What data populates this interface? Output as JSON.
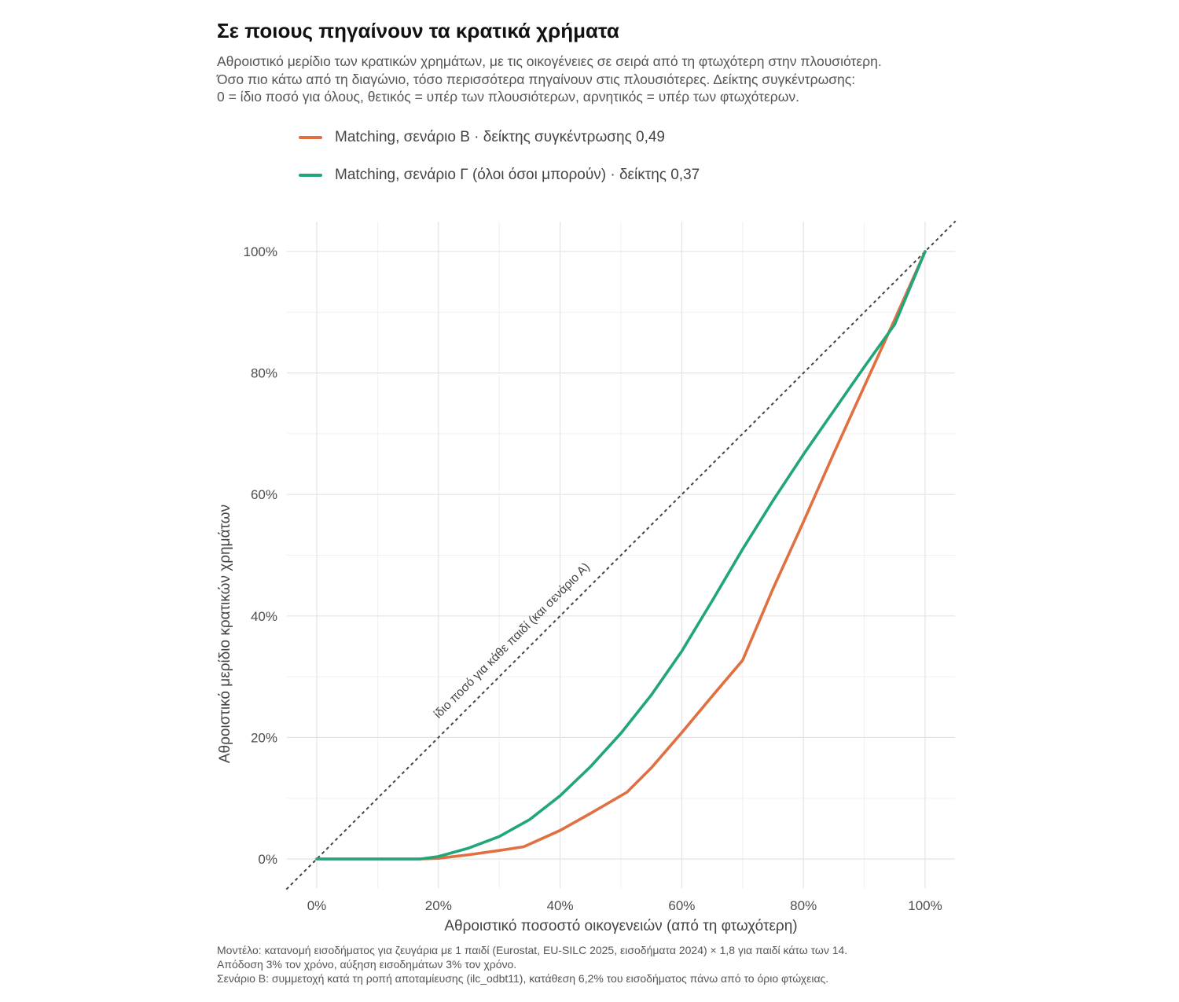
{
  "title": "Σε ποιους πηγαίνουν τα κρατικά χρήματα",
  "subtitle": [
    "Αθροιστικό μερίδιο των κρατικών χρημάτων, με τις οικογένειες σε σειρά από τη φτωχότερη στην πλουσιότερη.",
    "Όσο πιο κάτω από τη διαγώνιο, τόσο περισσότερα πηγαίνουν στις πλουσιότερες. Δείκτης συγκέντρωσης:",
    "0 = ίδιο ποσό για όλους, θετικός = υπέρ των πλουσιότερων, αρνητικός = υπέρ των φτωχότερων."
  ],
  "caption": [
    "Μοντέλο: κατανομή εισοδήματος για ζευγάρια με 1 παιδί (Eurostat, EU-SILC 2025, εισοδήματα 2024) × 1,8 για παιδί κάτω των 14.",
    "Απόδοση 3% τον χρόνο, αύξηση εισοδημάτων 3% τον χρόνο.",
    "Σενάριο Β: συμμετοχή κατά τη ροπή αποταμίευσης (ilc_odbt11), κατάθεση 6,2% του εισοδήματος πάνω από το όριο φτώχειας."
  ],
  "chart_data": {
    "type": "line",
    "title": "Σε ποιους πηγαίνουν τα κρατικά χρήματα",
    "xlabel": "Αθροιστικό ποσοστό οικογενειών (από τη φτωχότερη)",
    "ylabel": "Αθροιστικό μερίδιο κρατικών χρημάτων",
    "xlim": [
      0,
      1
    ],
    "ylim": [
      0,
      1
    ],
    "x_ticks": [
      {
        "value": 0,
        "label": "0%"
      },
      {
        "value": 0.2,
        "label": "20%"
      },
      {
        "value": 0.4,
        "label": "40%"
      },
      {
        "value": 0.6,
        "label": "60%"
      },
      {
        "value": 0.8,
        "label": "80%"
      },
      {
        "value": 1,
        "label": "100%"
      }
    ],
    "y_ticks": [
      {
        "value": 0,
        "label": "0%"
      },
      {
        "value": 0.2,
        "label": "20%"
      },
      {
        "value": 0.4,
        "label": "40%"
      },
      {
        "value": 0.6,
        "label": "60%"
      },
      {
        "value": 0.8,
        "label": "80%"
      },
      {
        "value": 1,
        "label": "100%"
      }
    ],
    "grid": true,
    "legend_position": "top",
    "reference_line": {
      "label": "ίδιο ποσό για κάθε παιδί (και σενάριο Α)",
      "x": [
        0,
        1
      ],
      "y": [
        0,
        1
      ],
      "style": "dotted",
      "color": "#444444"
    },
    "series": [
      {
        "name": "Matching, σενάριο Β · δείκτης συγκέντρωσης 0,49",
        "color": "#E07041",
        "x": [
          0,
          0.17,
          0.2,
          0.25,
          0.3,
          0.34,
          0.4,
          0.45,
          0.51,
          0.55,
          0.6,
          0.65,
          0.7,
          0.75,
          0.8,
          0.85,
          0.9,
          0.95,
          1.0
        ],
        "y": [
          0,
          0,
          0.001,
          0.007,
          0.014,
          0.02,
          0.047,
          0.075,
          0.11,
          0.15,
          0.208,
          0.268,
          0.327,
          0.445,
          0.555,
          0.668,
          0.778,
          0.888,
          1.0
        ]
      },
      {
        "name": "Matching, σενάριο Γ (όλοι όσοι μπορούν) · δείκτης 0,37",
        "color": "#21A67A",
        "x": [
          0,
          0.17,
          0.2,
          0.25,
          0.3,
          0.35,
          0.4,
          0.45,
          0.5,
          0.55,
          0.6,
          0.65,
          0.7,
          0.75,
          0.8,
          0.85,
          0.9,
          0.95,
          1.0
        ],
        "y": [
          0,
          0,
          0.004,
          0.018,
          0.037,
          0.065,
          0.104,
          0.152,
          0.207,
          0.27,
          0.342,
          0.425,
          0.51,
          0.59,
          0.666,
          0.738,
          0.81,
          0.88,
          1.0
        ]
      }
    ]
  }
}
